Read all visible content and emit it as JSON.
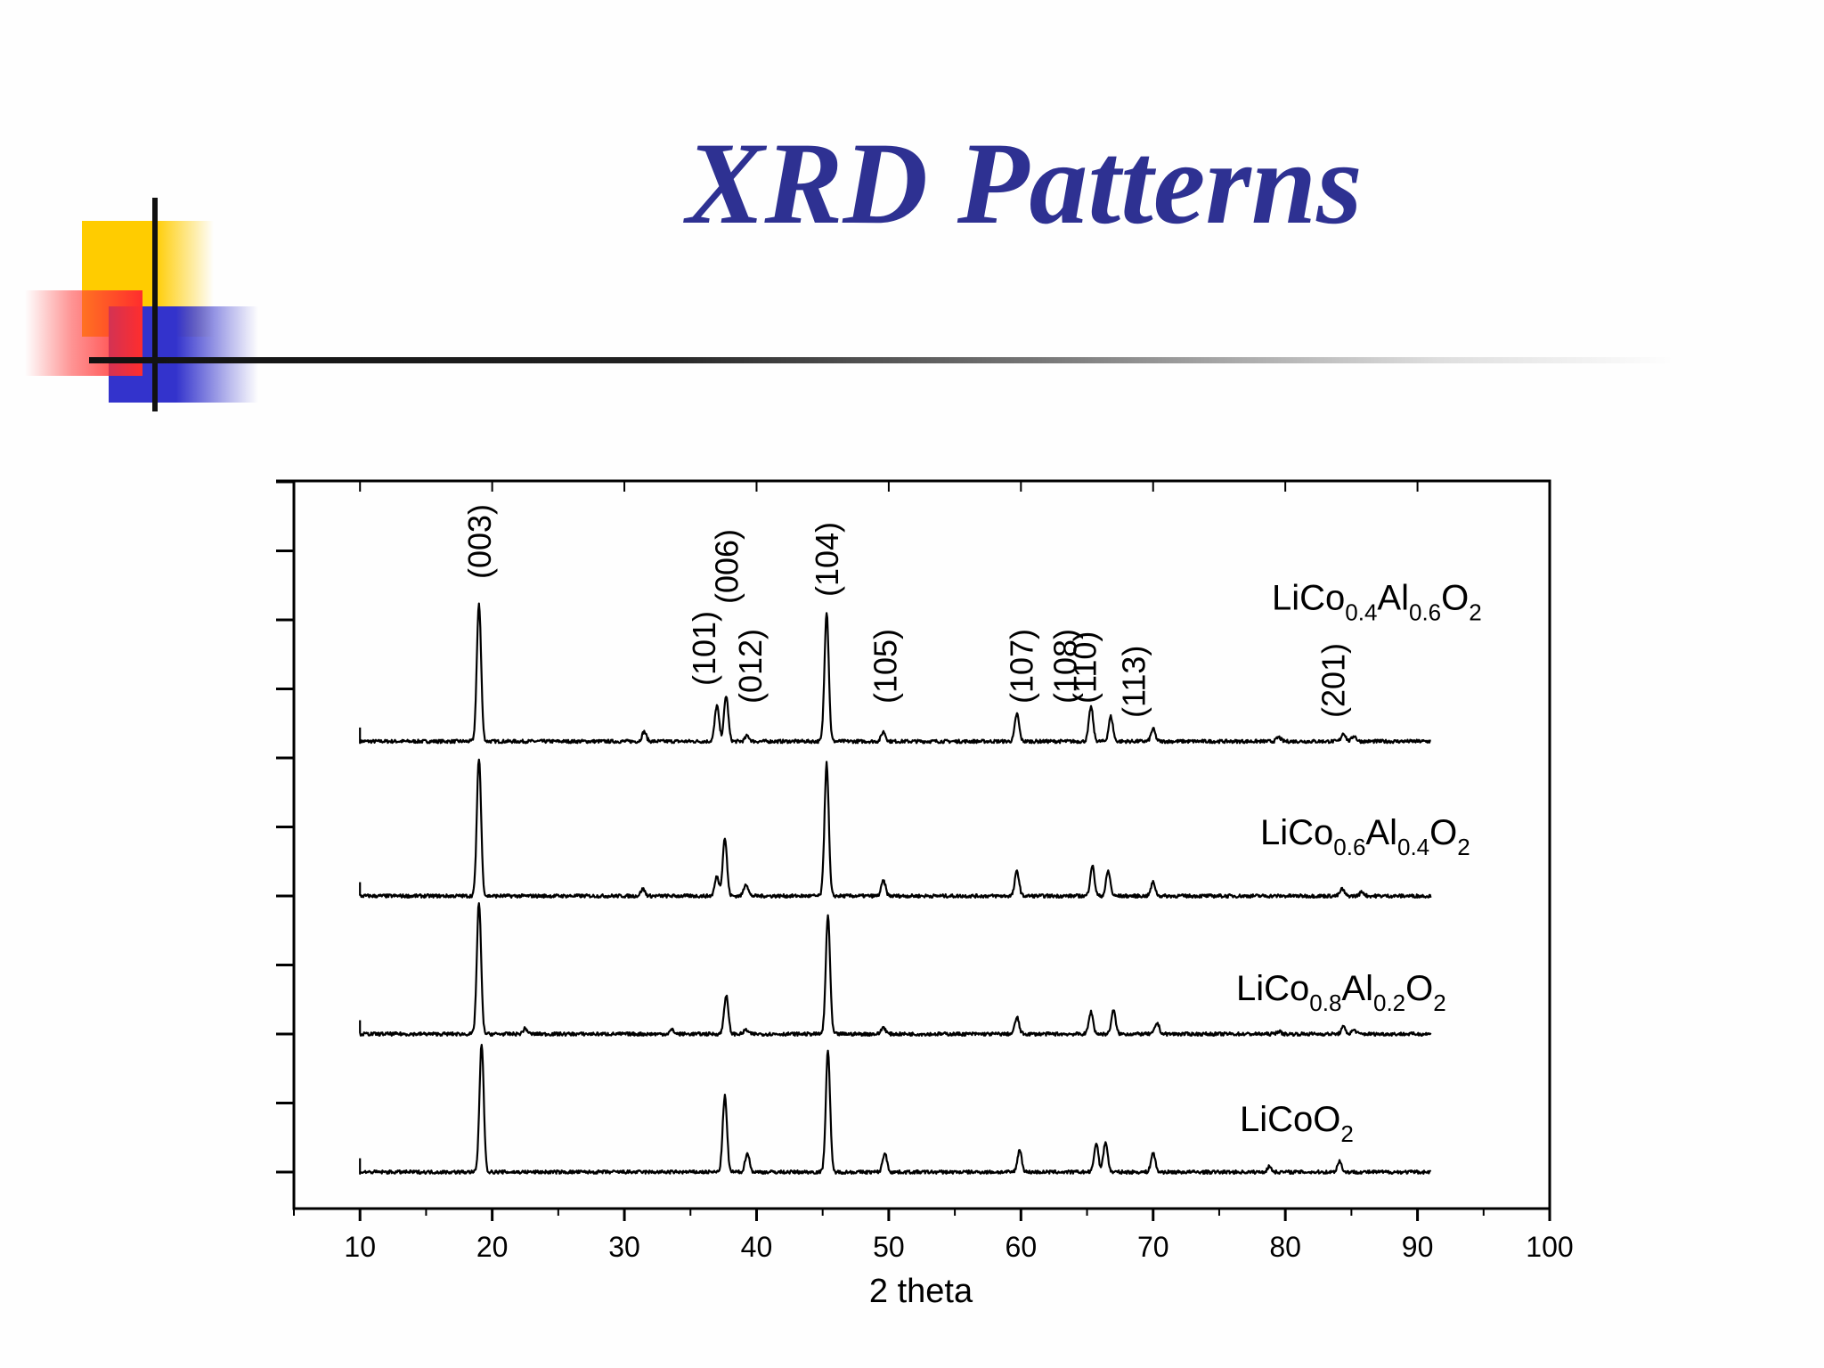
{
  "slide": {
    "title": "XRD Patterns"
  },
  "colors": {
    "title": "#2e3192",
    "deco_yellow": "#ffcc00",
    "deco_blue": "#3333cc",
    "deco_red": "#ff2d2d",
    "trace": "#000000"
  },
  "chart_data": {
    "type": "line",
    "title": "",
    "xlabel": "2 theta",
    "ylabel": "",
    "xlim": [
      5,
      100
    ],
    "x_ticks": [
      "10",
      "20",
      "30",
      "40",
      "50",
      "60",
      "70",
      "80",
      "90",
      "100"
    ],
    "x_range_data": [
      10,
      91
    ],
    "grid": false,
    "legend": "none; each pattern labelled at right",
    "series": [
      {
        "name_parts": [
          [
            "LiCo",
            "base"
          ],
          [
            "0.4",
            "sub"
          ],
          [
            "Al",
            "base"
          ],
          [
            "0.6",
            "sub"
          ],
          [
            "O",
            "base"
          ],
          [
            "2",
            "sub"
          ]
        ],
        "baseline": 0.0,
        "peaks": [
          {
            "x": 19.0,
            "h": 1.0
          },
          {
            "x": 31.5,
            "h": 0.07
          },
          {
            "x": 37.0,
            "h": 0.26
          },
          {
            "x": 37.7,
            "h": 0.33
          },
          {
            "x": 39.3,
            "h": 0.04
          },
          {
            "x": 45.3,
            "h": 0.94
          },
          {
            "x": 49.6,
            "h": 0.07
          },
          {
            "x": 59.7,
            "h": 0.2
          },
          {
            "x": 65.3,
            "h": 0.25
          },
          {
            "x": 66.8,
            "h": 0.18
          },
          {
            "x": 70.0,
            "h": 0.09
          },
          {
            "x": 79.5,
            "h": 0.03
          },
          {
            "x": 84.4,
            "h": 0.06
          },
          {
            "x": 85.2,
            "h": 0.04
          }
        ]
      },
      {
        "name_parts": [
          [
            "LiCo",
            "base"
          ],
          [
            "0.6",
            "sub"
          ],
          [
            "Al",
            "base"
          ],
          [
            "0.4",
            "sub"
          ],
          [
            "O",
            "base"
          ],
          [
            "2",
            "sub"
          ]
        ],
        "baseline": -1.12,
        "peaks": [
          {
            "x": 19.0,
            "h": 1.0
          },
          {
            "x": 31.4,
            "h": 0.05
          },
          {
            "x": 37.0,
            "h": 0.14
          },
          {
            "x": 37.6,
            "h": 0.42
          },
          {
            "x": 39.2,
            "h": 0.09
          },
          {
            "x": 45.3,
            "h": 0.96
          },
          {
            "x": 49.6,
            "h": 0.11
          },
          {
            "x": 59.7,
            "h": 0.18
          },
          {
            "x": 65.4,
            "h": 0.22
          },
          {
            "x": 66.6,
            "h": 0.18
          },
          {
            "x": 70.0,
            "h": 0.1
          },
          {
            "x": 84.3,
            "h": 0.05
          },
          {
            "x": 85.8,
            "h": 0.03
          }
        ]
      },
      {
        "name_parts": [
          [
            "LiCo",
            "base"
          ],
          [
            "0.8",
            "sub"
          ],
          [
            "Al",
            "base"
          ],
          [
            "0.2",
            "sub"
          ],
          [
            "O",
            "base"
          ],
          [
            "2",
            "sub"
          ]
        ],
        "baseline": -2.12,
        "peaks": [
          {
            "x": 19.0,
            "h": 0.95
          },
          {
            "x": 22.5,
            "h": 0.04
          },
          {
            "x": 33.6,
            "h": 0.03
          },
          {
            "x": 37.7,
            "h": 0.28
          },
          {
            "x": 39.2,
            "h": 0.03
          },
          {
            "x": 45.4,
            "h": 0.86
          },
          {
            "x": 49.6,
            "h": 0.05
          },
          {
            "x": 59.7,
            "h": 0.12
          },
          {
            "x": 65.3,
            "h": 0.16
          },
          {
            "x": 67.0,
            "h": 0.17
          },
          {
            "x": 70.3,
            "h": 0.08
          },
          {
            "x": 79.5,
            "h": 0.02
          },
          {
            "x": 84.4,
            "h": 0.05
          },
          {
            "x": 85.2,
            "h": 0.03
          }
        ]
      },
      {
        "name_parts": [
          [
            "LiCoO",
            "base"
          ],
          [
            "2",
            "sub"
          ]
        ],
        "baseline": -3.12,
        "peaks": [
          {
            "x": 19.2,
            "h": 0.93
          },
          {
            "x": 37.6,
            "h": 0.55
          },
          {
            "x": 39.3,
            "h": 0.14
          },
          {
            "x": 45.4,
            "h": 0.88
          },
          {
            "x": 49.7,
            "h": 0.14
          },
          {
            "x": 59.9,
            "h": 0.16
          },
          {
            "x": 65.7,
            "h": 0.21
          },
          {
            "x": 66.4,
            "h": 0.22
          },
          {
            "x": 70.0,
            "h": 0.14
          },
          {
            "x": 78.8,
            "h": 0.04
          },
          {
            "x": 84.1,
            "h": 0.08
          }
        ]
      }
    ],
    "annotations": [
      {
        "text": "(003)",
        "x": 19.0
      },
      {
        "text": "(101)",
        "x": 36.0
      },
      {
        "text": "(006)",
        "x": 37.7
      },
      {
        "text": "(012)",
        "x": 39.5
      },
      {
        "text": "(104)",
        "x": 45.3
      },
      {
        "text": "(105)",
        "x": 49.7
      },
      {
        "text": "(107)",
        "x": 60.0
      },
      {
        "text": "(108)",
        "x": 63.3
      },
      {
        "text": "(110)",
        "x": 64.8
      },
      {
        "text": "(113)",
        "x": 68.5
      },
      {
        "text": "(201)",
        "x": 83.6
      }
    ]
  }
}
